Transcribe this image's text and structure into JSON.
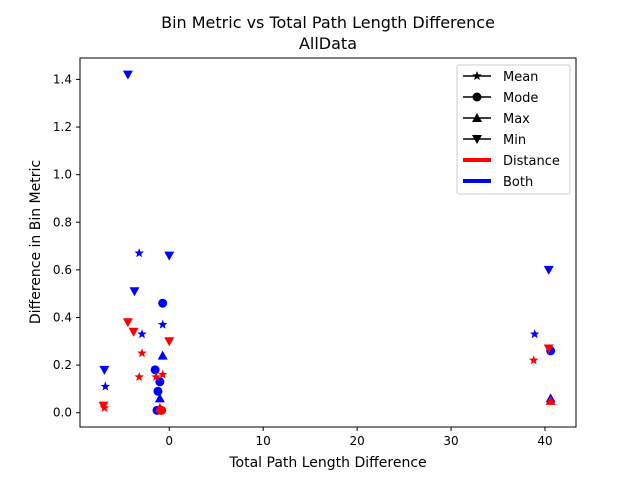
{
  "chart_data": {
    "type": "scatter",
    "title": "Bin Metric vs Total Path Length Difference",
    "subtitle": "AllData",
    "xlabel": "Total Path Length Difference",
    "ylabel": "Difference in Bin Metric",
    "xlim": [
      -9.5,
      43.3
    ],
    "ylim": [
      -0.06,
      1.49
    ],
    "xticks": [
      0,
      10,
      20,
      30,
      40
    ],
    "yticks": [
      0.0,
      0.2,
      0.4,
      0.6,
      0.8,
      1.0,
      1.2,
      1.4
    ],
    "xtick_labels": [
      "0",
      "10",
      "20",
      "30",
      "40"
    ],
    "ytick_labels": [
      "0.0",
      "0.2",
      "0.4",
      "0.6",
      "0.8",
      "1.0",
      "1.2",
      "1.4"
    ],
    "grid": false,
    "legend_position": "top-right",
    "legend": [
      {
        "label": "Mean",
        "kind": "marker",
        "marker": "star"
      },
      {
        "label": "Mode",
        "kind": "marker",
        "marker": "circle"
      },
      {
        "label": "Max",
        "kind": "marker",
        "marker": "triangle-up"
      },
      {
        "label": "Min",
        "kind": "marker",
        "marker": "triangle-down"
      },
      {
        "label": "Distance",
        "kind": "color",
        "color": "#ff0000"
      },
      {
        "label": "Both",
        "kind": "color",
        "color": "#0000ff"
      }
    ],
    "colors": {
      "Distance": "#ff0000",
      "Both": "#0000ff"
    },
    "points": [
      {
        "x": -4.4,
        "y": 1.42,
        "marker": "triangle-down",
        "group": "Both"
      },
      {
        "x": -3.2,
        "y": 0.67,
        "marker": "star",
        "group": "Both"
      },
      {
        "x": 0.0,
        "y": 0.66,
        "marker": "triangle-down",
        "group": "Both"
      },
      {
        "x": -3.7,
        "y": 0.51,
        "marker": "triangle-down",
        "group": "Both"
      },
      {
        "x": -0.7,
        "y": 0.46,
        "marker": "circle",
        "group": "Both"
      },
      {
        "x": -0.7,
        "y": 0.37,
        "marker": "star",
        "group": "Both"
      },
      {
        "x": -2.9,
        "y": 0.33,
        "marker": "star",
        "group": "Both"
      },
      {
        "x": -0.7,
        "y": 0.24,
        "marker": "triangle-up",
        "group": "Both"
      },
      {
        "x": -1.5,
        "y": 0.18,
        "marker": "circle",
        "group": "Both"
      },
      {
        "x": -1.0,
        "y": 0.13,
        "marker": "circle",
        "group": "Both"
      },
      {
        "x": -1.2,
        "y": 0.09,
        "marker": "circle",
        "group": "Both"
      },
      {
        "x": -1.0,
        "y": 0.06,
        "marker": "triangle-up",
        "group": "Both"
      },
      {
        "x": -6.9,
        "y": 0.18,
        "marker": "triangle-down",
        "group": "Both"
      },
      {
        "x": -6.8,
        "y": 0.11,
        "marker": "star",
        "group": "Both"
      },
      {
        "x": -1.3,
        "y": 0.01,
        "marker": "circle",
        "group": "Both"
      },
      {
        "x": 38.9,
        "y": 0.33,
        "marker": "star",
        "group": "Both"
      },
      {
        "x": 40.4,
        "y": 0.6,
        "marker": "triangle-down",
        "group": "Both"
      },
      {
        "x": 40.6,
        "y": 0.26,
        "marker": "circle",
        "group": "Both"
      },
      {
        "x": 40.6,
        "y": 0.06,
        "marker": "triangle-up",
        "group": "Both"
      },
      {
        "x": -4.4,
        "y": 0.38,
        "marker": "triangle-down",
        "group": "Distance"
      },
      {
        "x": -3.8,
        "y": 0.34,
        "marker": "triangle-down",
        "group": "Distance"
      },
      {
        "x": 0.0,
        "y": 0.3,
        "marker": "triangle-down",
        "group": "Distance"
      },
      {
        "x": -2.9,
        "y": 0.25,
        "marker": "star",
        "group": "Distance"
      },
      {
        "x": -3.2,
        "y": 0.15,
        "marker": "star",
        "group": "Distance"
      },
      {
        "x": -0.7,
        "y": 0.16,
        "marker": "star",
        "group": "Distance"
      },
      {
        "x": -1.4,
        "y": 0.15,
        "marker": "star",
        "group": "Distance"
      },
      {
        "x": -7.0,
        "y": 0.03,
        "marker": "triangle-down",
        "group": "Distance"
      },
      {
        "x": -6.9,
        "y": 0.02,
        "marker": "star",
        "group": "Distance"
      },
      {
        "x": -1.0,
        "y": 0.02,
        "marker": "triangle-up",
        "group": "Distance"
      },
      {
        "x": -0.9,
        "y": 0.01,
        "marker": "circle",
        "group": "Distance"
      },
      {
        "x": -0.8,
        "y": 0.01,
        "marker": "circle",
        "group": "Distance"
      },
      {
        "x": 38.8,
        "y": 0.22,
        "marker": "star",
        "group": "Distance"
      },
      {
        "x": 40.4,
        "y": 0.27,
        "marker": "triangle-down",
        "group": "Distance"
      },
      {
        "x": 40.6,
        "y": 0.05,
        "marker": "triangle-up",
        "group": "Distance"
      }
    ]
  }
}
